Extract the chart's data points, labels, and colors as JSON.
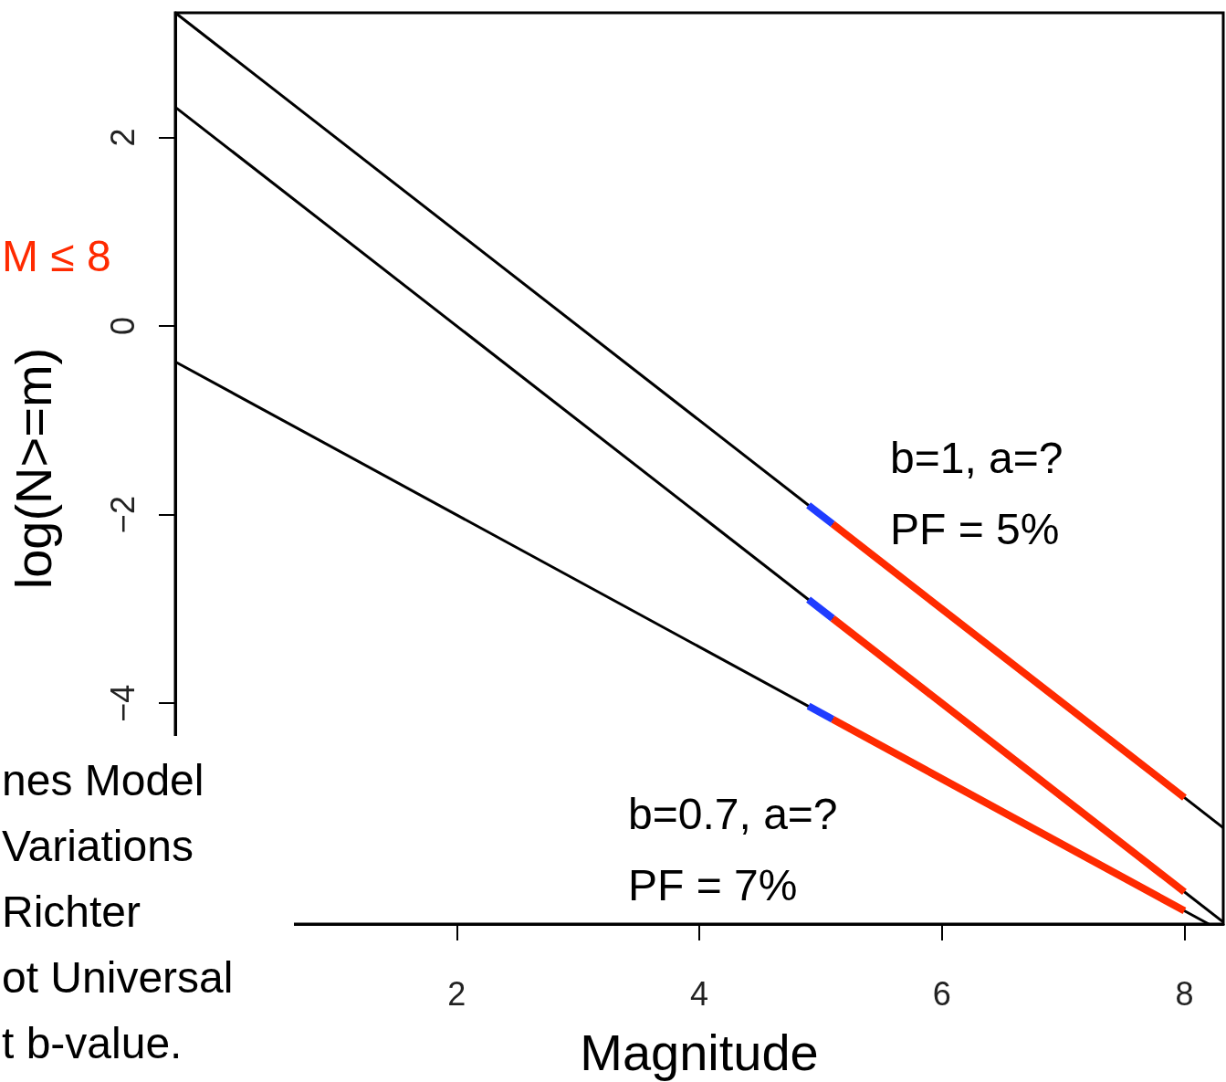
{
  "chart_data": {
    "type": "line",
    "xlabel": "Magnitude",
    "ylabel": "log(N>=m)",
    "xlim": [
      -0.32,
      8.32
    ],
    "ylim": [
      -6.34,
      3.32
    ],
    "xticks": [
      2,
      4,
      6,
      8
    ],
    "yticks": [
      -4,
      -2,
      0,
      2
    ],
    "series": [
      {
        "color": "#000000",
        "x": [
          -0.32,
          8.32
        ],
        "values": [
          3.32,
          -5.32
        ]
      },
      {
        "color": "#000000",
        "x": [
          -0.32,
          8.32
        ],
        "values": [
          2.32,
          -6.32
        ]
      },
      {
        "color": "#000000",
        "x": [
          -0.32,
          8.2
        ],
        "values": [
          -0.38,
          -6.34
        ]
      },
      {
        "color": "#1f3cff",
        "x": [
          4.9,
          5.1
        ],
        "values": [
          -1.9,
          -2.1
        ]
      },
      {
        "color": "#1f3cff",
        "x": [
          4.9,
          5.1
        ],
        "values": [
          -2.9,
          -3.1
        ]
      },
      {
        "color": "#1f3cff",
        "x": [
          4.9,
          5.1
        ],
        "values": [
          -4.03,
          -4.17
        ]
      },
      {
        "color": "#ff2a00",
        "x": [
          5.1,
          8
        ],
        "values": [
          -2.1,
          -5
        ]
      },
      {
        "color": "#ff2a00",
        "x": [
          5.1,
          8
        ],
        "values": [
          -3.1,
          -6
        ]
      },
      {
        "color": "#ff2a00",
        "x": [
          5.1,
          8
        ],
        "values": [
          -4.17,
          -6.2
        ]
      }
    ],
    "annotations": [
      "b=1, a=?\nPF = 5%",
      "b=0.7, a=?\nPF = 7%",
      "M ≤ 8",
      "nes Model\nVariations\nRichter\not Universal\nt b-value."
    ]
  }
}
